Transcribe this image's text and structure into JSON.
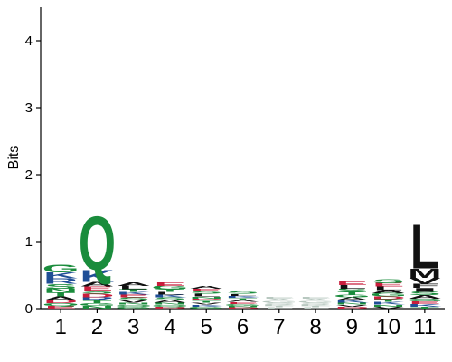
{
  "chart_data": {
    "type": "sequence-logo",
    "ylabel": "Bits",
    "ylim": [
      0,
      4.5
    ],
    "yticks": [
      "0",
      "1",
      "2",
      "3",
      "4"
    ],
    "positions": [
      "1",
      "2",
      "3",
      "4",
      "5",
      "6",
      "7",
      "8",
      "9",
      "10",
      "11"
    ],
    "colors": {
      "green": "#1a8c3c",
      "blue": "#1f4e96",
      "red": "#c81e3c",
      "black": "#111111",
      "faint": "#b8c8c0"
    },
    "stacks": [
      [
        {
          "letter": "G",
          "bits": 0.12,
          "color": "green"
        },
        {
          "letter": "K",
          "bits": 0.09,
          "color": "blue"
        },
        {
          "letter": "R",
          "bits": 0.08,
          "color": "blue"
        },
        {
          "letter": "S",
          "bits": 0.07,
          "color": "green"
        },
        {
          "letter": "T",
          "bits": 0.06,
          "color": "green"
        },
        {
          "letter": "N",
          "bits": 0.06,
          "color": "green"
        },
        {
          "letter": "D",
          "bits": 0.05,
          "color": "red"
        },
        {
          "letter": "A",
          "bits": 0.05,
          "color": "black"
        },
        {
          "letter": "E",
          "bits": 0.04,
          "color": "red"
        },
        {
          "letter": "Q",
          "bits": 0.04,
          "color": "green"
        }
      ],
      [
        {
          "letter": "Q",
          "bits": 0.82,
          "color": "green"
        },
        {
          "letter": "K",
          "bits": 0.18,
          "color": "blue"
        },
        {
          "letter": "A",
          "bits": 0.07,
          "color": "black"
        },
        {
          "letter": "E",
          "bits": 0.06,
          "color": "red"
        },
        {
          "letter": "R",
          "bits": 0.05,
          "color": "blue"
        },
        {
          "letter": "D",
          "bits": 0.05,
          "color": "red"
        },
        {
          "letter": "S",
          "bits": 0.05,
          "color": "green"
        },
        {
          "letter": "N",
          "bits": 0.04,
          "color": "green"
        },
        {
          "letter": "G",
          "bits": 0.04,
          "color": "green"
        },
        {
          "letter": "T",
          "bits": 0.04,
          "color": "green"
        }
      ],
      [
        {
          "letter": "L",
          "bits": 0.05,
          "color": "black"
        },
        {
          "letter": "A",
          "bits": 0.05,
          "color": "black"
        },
        {
          "letter": "V",
          "bits": 0.04,
          "color": "black"
        },
        {
          "letter": "S",
          "bits": 0.04,
          "color": "green"
        },
        {
          "letter": "E",
          "bits": 0.04,
          "color": "red"
        },
        {
          "letter": "K",
          "bits": 0.04,
          "color": "blue"
        },
        {
          "letter": "T",
          "bits": 0.04,
          "color": "green"
        },
        {
          "letter": "G",
          "bits": 0.03,
          "color": "green"
        },
        {
          "letter": "Q",
          "bits": 0.03,
          "color": "green"
        },
        {
          "letter": "N",
          "bits": 0.03,
          "color": "green"
        }
      ],
      [
        {
          "letter": "G",
          "bits": 0.05,
          "color": "green"
        },
        {
          "letter": "E",
          "bits": 0.05,
          "color": "red"
        },
        {
          "letter": "A",
          "bits": 0.04,
          "color": "black"
        },
        {
          "letter": "S",
          "bits": 0.04,
          "color": "green"
        },
        {
          "letter": "K",
          "bits": 0.04,
          "color": "blue"
        },
        {
          "letter": "L",
          "bits": 0.04,
          "color": "black"
        },
        {
          "letter": "T",
          "bits": 0.04,
          "color": "green"
        },
        {
          "letter": "D",
          "bits": 0.03,
          "color": "red"
        },
        {
          "letter": "Q",
          "bits": 0.03,
          "color": "green"
        },
        {
          "letter": "N",
          "bits": 0.03,
          "color": "green"
        }
      ],
      [
        {
          "letter": "L",
          "bits": 0.04,
          "color": "black"
        },
        {
          "letter": "S",
          "bits": 0.04,
          "color": "green"
        },
        {
          "letter": "E",
          "bits": 0.04,
          "color": "red"
        },
        {
          "letter": "A",
          "bits": 0.04,
          "color": "black"
        },
        {
          "letter": "G",
          "bits": 0.03,
          "color": "green"
        },
        {
          "letter": "K",
          "bits": 0.03,
          "color": "blue"
        },
        {
          "letter": "V",
          "bits": 0.03,
          "color": "black"
        },
        {
          "letter": "T",
          "bits": 0.03,
          "color": "green"
        },
        {
          "letter": "D",
          "bits": 0.03,
          "color": "red"
        },
        {
          "letter": "N",
          "bits": 0.03,
          "color": "green"
        }
      ],
      [
        {
          "letter": "S",
          "bits": 0.04,
          "color": "green"
        },
        {
          "letter": "G",
          "bits": 0.03,
          "color": "green"
        },
        {
          "letter": "E",
          "bits": 0.03,
          "color": "red"
        },
        {
          "letter": "A",
          "bits": 0.03,
          "color": "black"
        },
        {
          "letter": "T",
          "bits": 0.03,
          "color": "green"
        },
        {
          "letter": "K",
          "bits": 0.03,
          "color": "blue"
        },
        {
          "letter": "L",
          "bits": 0.03,
          "color": "black"
        },
        {
          "letter": "D",
          "bits": 0.02,
          "color": "red"
        },
        {
          "letter": "N",
          "bits": 0.02,
          "color": "green"
        }
      ],
      [
        {
          "letter": "S",
          "bits": 0.03,
          "color": "faint"
        },
        {
          "letter": "G",
          "bits": 0.03,
          "color": "faint"
        },
        {
          "letter": "A",
          "bits": 0.03,
          "color": "faint"
        },
        {
          "letter": "E",
          "bits": 0.03,
          "color": "faint"
        },
        {
          "letter": "L",
          "bits": 0.02,
          "color": "faint"
        },
        {
          "letter": "T",
          "bits": 0.02,
          "color": "faint"
        },
        {
          "letter": "K",
          "bits": 0.02,
          "color": "faint"
        }
      ],
      [
        {
          "letter": "S",
          "bits": 0.03,
          "color": "faint"
        },
        {
          "letter": "G",
          "bits": 0.03,
          "color": "faint"
        },
        {
          "letter": "A",
          "bits": 0.03,
          "color": "faint"
        },
        {
          "letter": "E",
          "bits": 0.03,
          "color": "faint"
        },
        {
          "letter": "L",
          "bits": 0.02,
          "color": "faint"
        },
        {
          "letter": "T",
          "bits": 0.02,
          "color": "faint"
        },
        {
          "letter": "K",
          "bits": 0.02,
          "color": "faint"
        }
      ],
      [
        {
          "letter": "S",
          "bits": 0.05,
          "color": "green"
        },
        {
          "letter": "L",
          "bits": 0.05,
          "color": "black"
        },
        {
          "letter": "E",
          "bits": 0.05,
          "color": "red"
        },
        {
          "letter": "K",
          "bits": 0.04,
          "color": "blue"
        },
        {
          "letter": "A",
          "bits": 0.04,
          "color": "black"
        },
        {
          "letter": "G",
          "bits": 0.04,
          "color": "green"
        },
        {
          "letter": "T",
          "bits": 0.04,
          "color": "green"
        },
        {
          "letter": "D",
          "bits": 0.03,
          "color": "red"
        },
        {
          "letter": "V",
          "bits": 0.03,
          "color": "black"
        },
        {
          "letter": "N",
          "bits": 0.03,
          "color": "green"
        }
      ],
      [
        {
          "letter": "S",
          "bits": 0.06,
          "color": "green"
        },
        {
          "letter": "G",
          "bits": 0.05,
          "color": "green"
        },
        {
          "letter": "A",
          "bits": 0.05,
          "color": "black"
        },
        {
          "letter": "L",
          "bits": 0.05,
          "color": "black"
        },
        {
          "letter": "E",
          "bits": 0.05,
          "color": "red"
        },
        {
          "letter": "K",
          "bits": 0.04,
          "color": "blue"
        },
        {
          "letter": "T",
          "bits": 0.04,
          "color": "green"
        },
        {
          "letter": "D",
          "bits": 0.04,
          "color": "red"
        },
        {
          "letter": "V",
          "bits": 0.03,
          "color": "black"
        },
        {
          "letter": "N",
          "bits": 0.03,
          "color": "green"
        }
      ],
      [
        {
          "letter": "L",
          "bits": 0.68,
          "color": "black"
        },
        {
          "letter": "M",
          "bits": 0.14,
          "color": "black"
        },
        {
          "letter": "V",
          "bits": 0.09,
          "color": "black"
        },
        {
          "letter": "I",
          "bits": 0.06,
          "color": "black"
        },
        {
          "letter": "F",
          "bits": 0.06,
          "color": "black"
        },
        {
          "letter": "A",
          "bits": 0.05,
          "color": "black"
        },
        {
          "letter": "S",
          "bits": 0.05,
          "color": "green"
        },
        {
          "letter": "K",
          "bits": 0.04,
          "color": "blue"
        },
        {
          "letter": "E",
          "bits": 0.04,
          "color": "red"
        },
        {
          "letter": "G",
          "bits": 0.04,
          "color": "green"
        },
        {
          "letter": "T",
          "bits": 0.03,
          "color": "green"
        }
      ]
    ]
  }
}
